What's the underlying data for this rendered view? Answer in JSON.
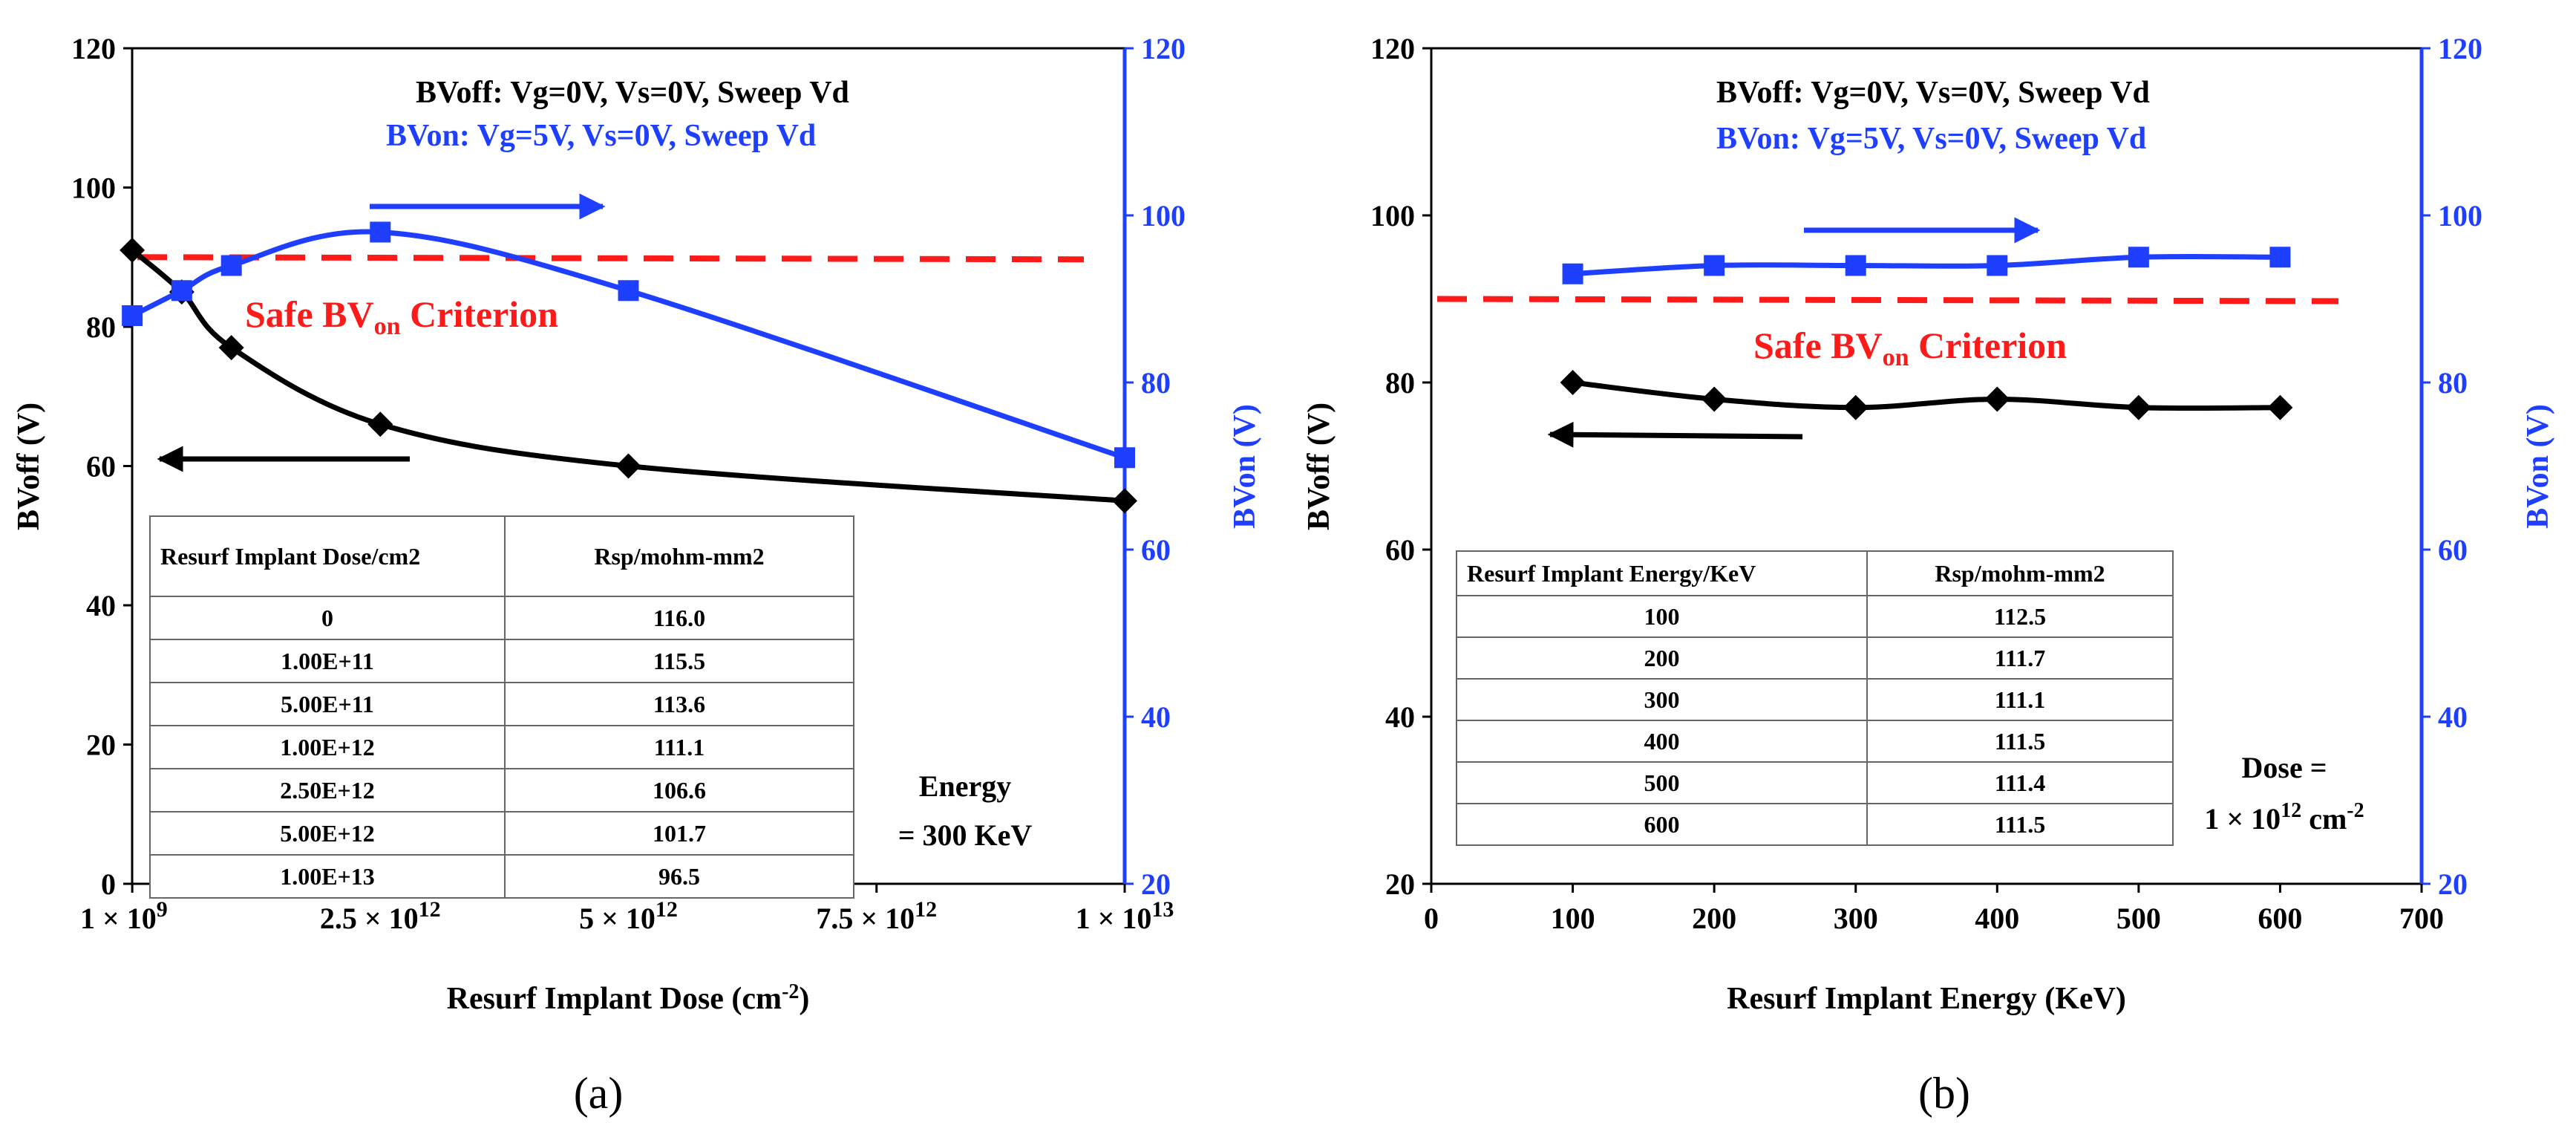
{
  "chart_data": [
    {
      "id": "a",
      "type": "line",
      "panel_label": "(a)",
      "xlabel_main": "Resurf Implant Dose (cm",
      "xlabel_sup": "-2",
      "xlabel_tail": ")",
      "ylabel": "BVoff (V)",
      "ylabel_right": "BVon (V)",
      "ylim": [
        0,
        120
      ],
      "ylim_right": [
        20,
        120
      ],
      "xlim": [
        0,
        10000000000000
      ],
      "yticks": [
        0,
        20,
        40,
        60,
        80,
        100,
        120
      ],
      "yticks_right": [
        20,
        40,
        60,
        80,
        100,
        120
      ],
      "xticks": [
        {
          "value": 1000000000,
          "base": "1 × 10",
          "exp": "9"
        },
        {
          "value": 2500000000000,
          "base": "2.5 × 10",
          "exp": "12"
        },
        {
          "value": 5000000000000,
          "base": "5 × 10",
          "exp": "12"
        },
        {
          "value": 7500000000000,
          "base": "7.5 × 10",
          "exp": "12"
        },
        {
          "value": 10000000000000,
          "base": "1 × 10",
          "exp": "13"
        }
      ],
      "cond_off": "BVoff: Vg=0V, Vs=0V, Sweep Vd",
      "cond_on": "BVon: Vg=5V, Vs=0V, Sweep Vd",
      "criterion_main": "Safe BV",
      "criterion_sub": "on",
      "criterion_tail": " Criterion",
      "criterion_y": 90,
      "note_lines": [
        "Energy",
        "= 300 KeV"
      ],
      "series": [
        {
          "name": "BVoff",
          "axis": "left",
          "color": "#000000",
          "marker": "diamond",
          "x": [
            1000000000,
            500000000000,
            1000000000000,
            2500000000000,
            5000000000000,
            10000000000000
          ],
          "values": [
            91,
            85,
            77,
            66,
            60,
            55
          ]
        },
        {
          "name": "BVon",
          "axis": "right",
          "color": "#1f3fff",
          "marker": "square",
          "x": [
            1000000000,
            500000000000,
            1000000000000,
            2500000000000,
            5000000000000,
            10000000000000
          ],
          "values": [
            88,
            91,
            94,
            98,
            91,
            71
          ]
        }
      ],
      "table": {
        "headers": [
          "Resurf Implant Dose/cm2",
          "Rsp/mohm-mm2"
        ],
        "rows": [
          [
            "0",
            "116.0"
          ],
          [
            "1.00E+11",
            "115.5"
          ],
          [
            "5.00E+11",
            "113.6"
          ],
          [
            "1.00E+12",
            "111.1"
          ],
          [
            "2.50E+12",
            "106.6"
          ],
          [
            "5.00E+12",
            "101.7"
          ],
          [
            "1.00E+13",
            "96.5"
          ]
        ]
      }
    },
    {
      "id": "b",
      "type": "line",
      "panel_label": "(b)",
      "xlabel_main": "Resurf Implant Energy (KeV)",
      "ylabel": "BVoff (V)",
      "ylabel_right": "BVon (V)",
      "ylim": [
        20,
        120
      ],
      "ylim_right": [
        20,
        120
      ],
      "xlim": [
        0,
        700
      ],
      "yticks": [
        20,
        40,
        60,
        80,
        100,
        120
      ],
      "yticks_right": [
        20,
        40,
        60,
        80,
        100,
        120
      ],
      "xticks": [
        {
          "value": 0,
          "base": "0"
        },
        {
          "value": 100,
          "base": "100"
        },
        {
          "value": 200,
          "base": "200"
        },
        {
          "value": 300,
          "base": "300"
        },
        {
          "value": 400,
          "base": "400"
        },
        {
          "value": 500,
          "base": "500"
        },
        {
          "value": 600,
          "base": "600"
        },
        {
          "value": 700,
          "base": "700"
        }
      ],
      "cond_off": "BVoff: Vg=0V, Vs=0V, Sweep Vd",
      "cond_on": "BVon: Vg=5V, Vs=0V, Sweep Vd",
      "criterion_main": "Safe BV",
      "criterion_sub": "on",
      "criterion_tail": " Criterion",
      "criterion_y": 90,
      "note_lines": [
        "Dose =",
        "1 × 10",
        "12",
        " cm",
        "-2"
      ],
      "series": [
        {
          "name": "BVoff",
          "axis": "left",
          "color": "#000000",
          "marker": "diamond",
          "x": [
            100,
            200,
            300,
            400,
            500,
            600
          ],
          "values": [
            80,
            78,
            77,
            78,
            77,
            77
          ]
        },
        {
          "name": "BVon",
          "axis": "right",
          "color": "#1f3fff",
          "marker": "square",
          "x": [
            100,
            200,
            300,
            400,
            500,
            600
          ],
          "values": [
            93,
            94,
            94,
            94,
            95,
            95
          ]
        }
      ],
      "table": {
        "headers": [
          "Resurf Implant Energy/KeV",
          "Rsp/mohm-mm2"
        ],
        "rows": [
          [
            "100",
            "112.5"
          ],
          [
            "200",
            "111.7"
          ],
          [
            "300",
            "111.1"
          ],
          [
            "400",
            "111.5"
          ],
          [
            "500",
            "111.4"
          ],
          [
            "600",
            "111.5"
          ]
        ]
      }
    }
  ]
}
